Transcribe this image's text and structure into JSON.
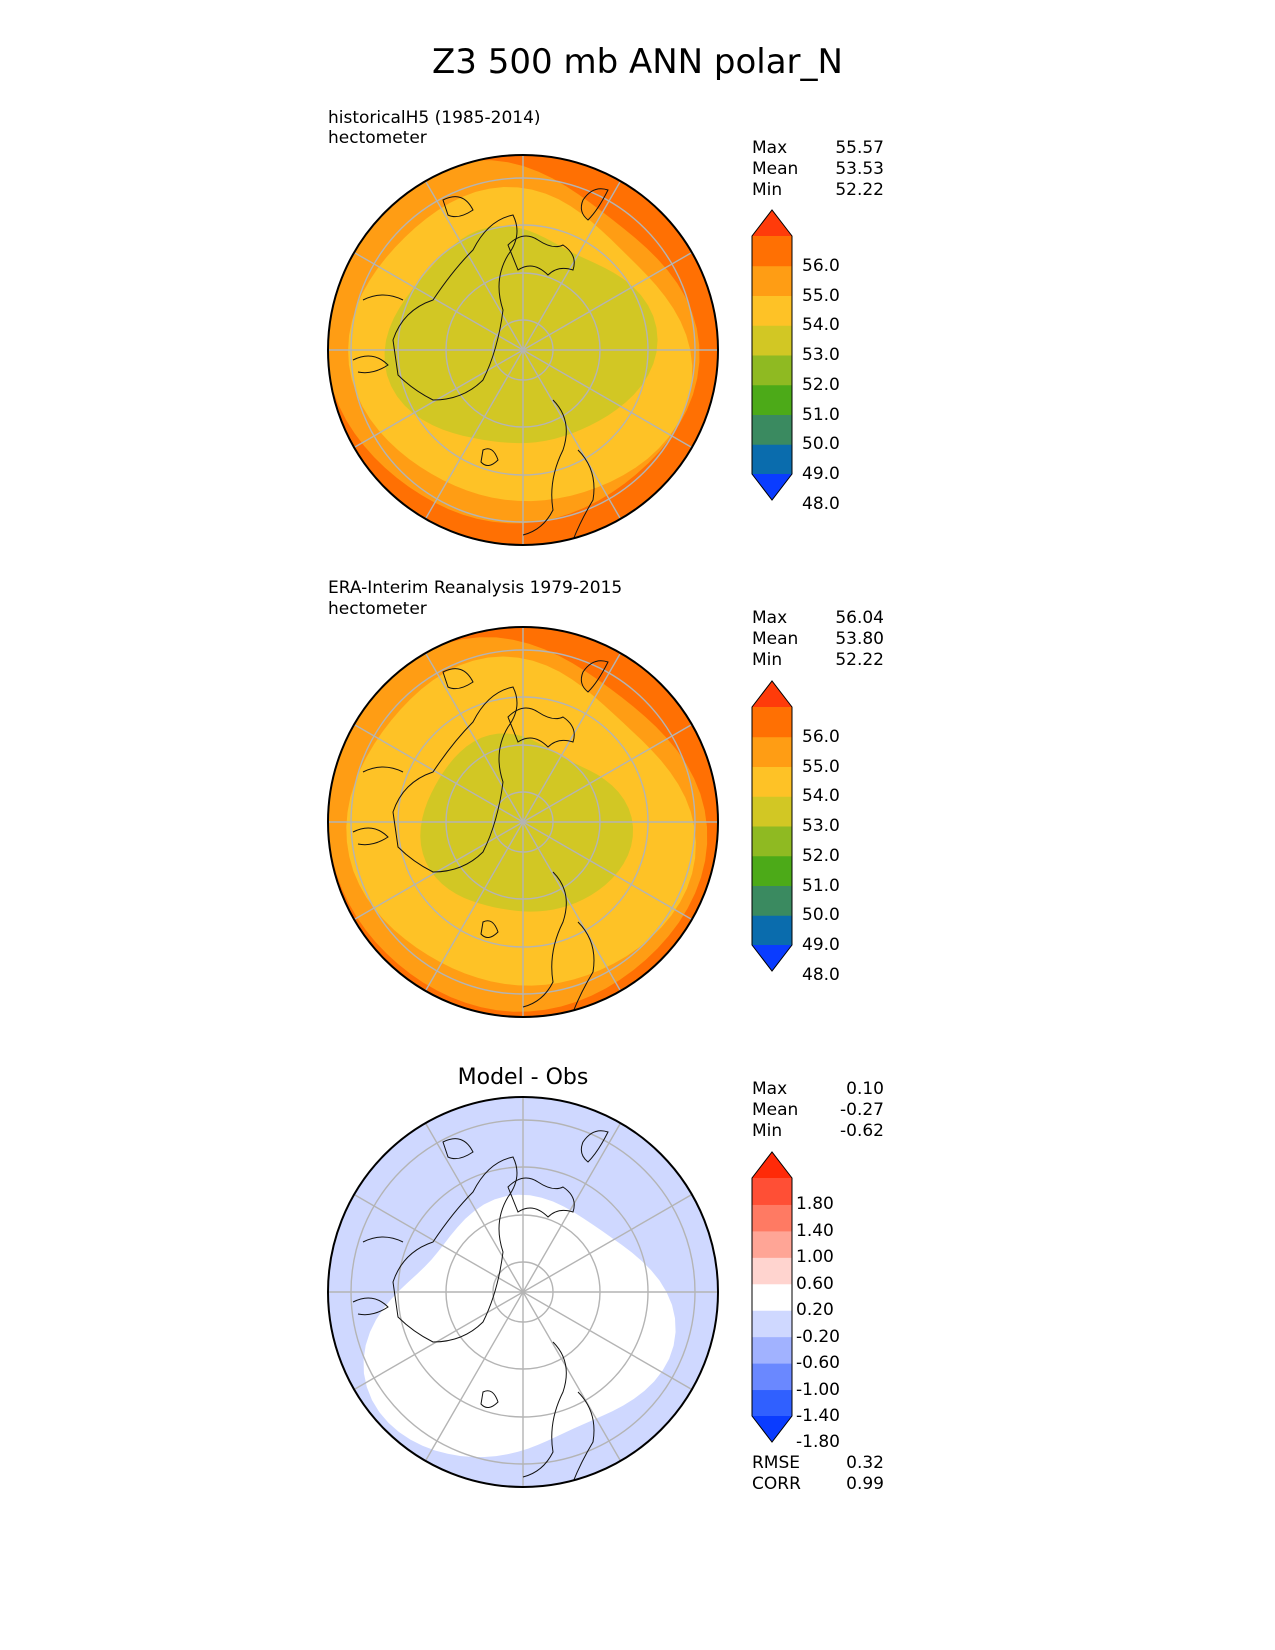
{
  "title": "Z3 500 mb ANN polar_N",
  "panels": [
    {
      "id": "test",
      "title": "",
      "line1": "historicalH5 (1985-2014)",
      "line2": "hectometer",
      "stats": {
        "max_label": "Max",
        "max": "55.57",
        "mean_label": "Mean",
        "mean": "53.53",
        "min_label": "Min",
        "min": "52.22"
      },
      "colorbar": {
        "colors": [
          "#0a3cff",
          "#0a6cad",
          "#3a8a60",
          "#4caa18",
          "#8fba22",
          "#d2c724",
          "#fec226",
          "#ff9d14",
          "#ff7003",
          "#ff3b0a"
        ],
        "ticks": [
          "56.0",
          "55.0",
          "54.0",
          "53.0",
          "52.0",
          "51.0",
          "50.0",
          "49.0",
          "48.0"
        ]
      }
    },
    {
      "id": "reference",
      "title": "",
      "line1": "ERA-Interim Reanalysis 1979-2015",
      "line2": "hectometer",
      "stats": {
        "max_label": "Max",
        "max": "56.04",
        "mean_label": "Mean",
        "mean": "53.80",
        "min_label": "Min",
        "min": "52.22"
      },
      "colorbar": {
        "colors": [
          "#0a3cff",
          "#0a6cad",
          "#3a8a60",
          "#4caa18",
          "#8fba22",
          "#d2c724",
          "#fec226",
          "#ff9d14",
          "#ff7003",
          "#ff3b0a"
        ],
        "ticks": [
          "56.0",
          "55.0",
          "54.0",
          "53.0",
          "52.0",
          "51.0",
          "50.0",
          "49.0",
          "48.0"
        ]
      }
    },
    {
      "id": "diff",
      "title": "Model - Obs",
      "line1": "",
      "line2": "",
      "stats": {
        "max_label": "Max",
        "max": "0.10",
        "mean_label": "Mean",
        "mean": "-0.27",
        "min_label": "Min",
        "min": "-0.62"
      },
      "colorbar": {
        "colors": [
          "#0a3cff",
          "#3060ff",
          "#6a88ff",
          "#a1b2ff",
          "#cfd8ff",
          "#ffffff",
          "#ffd4cf",
          "#ffa596",
          "#ff7a63",
          "#ff4f35",
          "#ff2a08"
        ],
        "ticks": [
          "1.80",
          "1.40",
          "1.00",
          "0.60",
          "0.20",
          "-0.20",
          "-0.60",
          "-1.00",
          "-1.40",
          "-1.80"
        ]
      },
      "metrics": {
        "rmse_label": "RMSE",
        "rmse": "0.32",
        "corr_label": "CORR",
        "corr": "0.99"
      }
    }
  ]
}
